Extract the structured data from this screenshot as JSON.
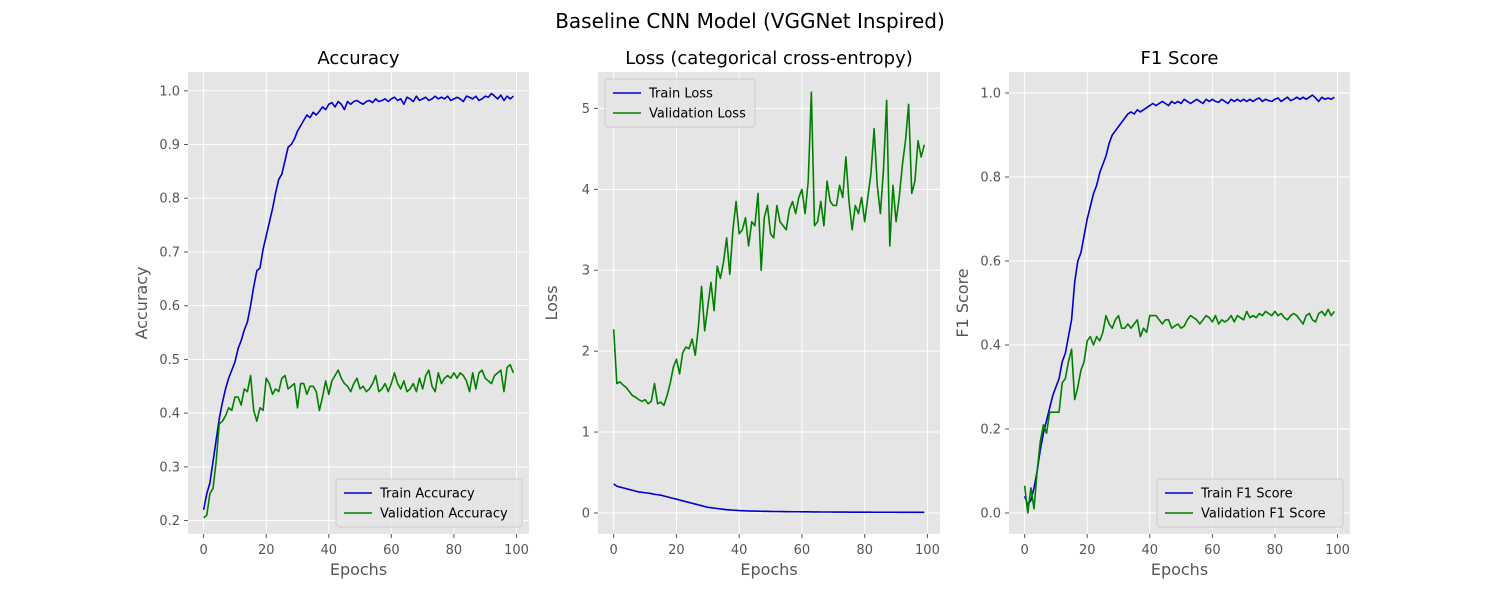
{
  "figure": {
    "title": "Baseline CNN Model (VGGNet Inspired)"
  },
  "chart_data": [
    {
      "type": "line",
      "title": "Accuracy",
      "xlabel": "Epochs",
      "ylabel": "Accuracy",
      "xlim": [
        -5,
        104
      ],
      "ylim": [
        0.175,
        1.035
      ],
      "xticks": [
        0,
        20,
        40,
        60,
        80,
        100
      ],
      "yticks": [
        0.2,
        0.3,
        0.4,
        0.5,
        0.6,
        0.7,
        0.8,
        0.9,
        1.0
      ],
      "ytick_labels": [
        "0.2",
        "0.3",
        "0.4",
        "0.5",
        "0.6",
        "0.7",
        "0.8",
        "0.9",
        "1.0"
      ],
      "grid": true,
      "legend": "lower right",
      "series": [
        {
          "name": "Train Accuracy",
          "color": "#0000cc",
          "values": [
            0.22,
            0.25,
            0.27,
            0.31,
            0.35,
            0.39,
            0.42,
            0.445,
            0.465,
            0.48,
            0.495,
            0.52,
            0.535,
            0.555,
            0.57,
            0.6,
            0.635,
            0.665,
            0.67,
            0.705,
            0.73,
            0.755,
            0.78,
            0.81,
            0.835,
            0.845,
            0.87,
            0.895,
            0.9,
            0.91,
            0.925,
            0.935,
            0.945,
            0.955,
            0.95,
            0.96,
            0.955,
            0.962,
            0.97,
            0.965,
            0.975,
            0.978,
            0.97,
            0.98,
            0.975,
            0.965,
            0.98,
            0.975,
            0.98,
            0.982,
            0.978,
            0.975,
            0.98,
            0.982,
            0.978,
            0.985,
            0.98,
            0.982,
            0.985,
            0.98,
            0.985,
            0.988,
            0.982,
            0.985,
            0.975,
            0.988,
            0.985,
            0.98,
            0.99,
            0.982,
            0.985,
            0.988,
            0.982,
            0.985,
            0.99,
            0.985,
            0.988,
            0.985,
            0.99,
            0.982,
            0.985,
            0.988,
            0.985,
            0.98,
            0.99,
            0.988,
            0.985,
            0.99,
            0.982,
            0.985,
            0.99,
            0.988,
            0.995,
            0.99,
            0.985,
            0.992,
            0.982,
            0.99,
            0.985,
            0.99
          ]
        },
        {
          "name": "Validation Accuracy",
          "color": "#008000",
          "values": [
            0.205,
            0.21,
            0.25,
            0.26,
            0.31,
            0.38,
            0.385,
            0.395,
            0.41,
            0.405,
            0.43,
            0.43,
            0.415,
            0.445,
            0.44,
            0.47,
            0.405,
            0.385,
            0.41,
            0.405,
            0.465,
            0.455,
            0.435,
            0.445,
            0.44,
            0.465,
            0.47,
            0.445,
            0.45,
            0.455,
            0.41,
            0.455,
            0.455,
            0.435,
            0.45,
            0.45,
            0.44,
            0.405,
            0.43,
            0.46,
            0.435,
            0.46,
            0.47,
            0.48,
            0.465,
            0.455,
            0.45,
            0.44,
            0.455,
            0.465,
            0.445,
            0.45,
            0.44,
            0.445,
            0.455,
            0.47,
            0.44,
            0.445,
            0.455,
            0.44,
            0.455,
            0.475,
            0.455,
            0.445,
            0.46,
            0.44,
            0.445,
            0.455,
            0.44,
            0.465,
            0.445,
            0.47,
            0.48,
            0.45,
            0.44,
            0.475,
            0.455,
            0.465,
            0.47,
            0.465,
            0.475,
            0.465,
            0.475,
            0.47,
            0.46,
            0.44,
            0.475,
            0.445,
            0.475,
            0.48,
            0.465,
            0.46,
            0.455,
            0.47,
            0.475,
            0.48,
            0.44,
            0.485,
            0.49,
            0.475
          ]
        }
      ]
    },
    {
      "type": "line",
      "title": "Loss (categorical cross-entropy)",
      "xlabel": "Epochs",
      "ylabel": "Loss",
      "xlim": [
        -5,
        104
      ],
      "ylim": [
        -0.26,
        5.45
      ],
      "xticks": [
        0,
        20,
        40,
        60,
        80,
        100
      ],
      "yticks": [
        0,
        1,
        2,
        3,
        4,
        5
      ],
      "ytick_labels": [
        "0",
        "1",
        "2",
        "3",
        "4",
        "5"
      ],
      "grid": true,
      "legend": "upper left",
      "series": [
        {
          "name": "Train Loss",
          "color": "#0000cc",
          "values": [
            0.36,
            0.33,
            0.32,
            0.31,
            0.3,
            0.29,
            0.28,
            0.27,
            0.26,
            0.255,
            0.25,
            0.245,
            0.24,
            0.23,
            0.225,
            0.22,
            0.21,
            0.2,
            0.19,
            0.18,
            0.17,
            0.16,
            0.15,
            0.14,
            0.13,
            0.12,
            0.11,
            0.1,
            0.09,
            0.08,
            0.07,
            0.065,
            0.06,
            0.055,
            0.05,
            0.045,
            0.04,
            0.038,
            0.035,
            0.033,
            0.03,
            0.028,
            0.026,
            0.025,
            0.024,
            0.023,
            0.022,
            0.021,
            0.02,
            0.02,
            0.019,
            0.018,
            0.018,
            0.017,
            0.017,
            0.016,
            0.016,
            0.015,
            0.015,
            0.015,
            0.014,
            0.014,
            0.014,
            0.013,
            0.013,
            0.013,
            0.012,
            0.012,
            0.012,
            0.012,
            0.011,
            0.011,
            0.011,
            0.011,
            0.011,
            0.01,
            0.01,
            0.01,
            0.01,
            0.01,
            0.01,
            0.01,
            0.01,
            0.009,
            0.009,
            0.009,
            0.009,
            0.009,
            0.009,
            0.009,
            0.009,
            0.008,
            0.008,
            0.008,
            0.008,
            0.008,
            0.008,
            0.008,
            0.008,
            0.008
          ]
        },
        {
          "name": "Validation Loss",
          "color": "#008000",
          "values": [
            2.27,
            1.6,
            1.62,
            1.58,
            1.55,
            1.5,
            1.45,
            1.43,
            1.4,
            1.38,
            1.4,
            1.35,
            1.38,
            1.6,
            1.35,
            1.37,
            1.33,
            1.45,
            1.6,
            1.8,
            1.9,
            1.72,
            1.98,
            2.05,
            2.03,
            2.15,
            1.95,
            2.3,
            2.8,
            2.25,
            2.55,
            2.85,
            2.5,
            3.05,
            2.9,
            3.1,
            3.4,
            2.95,
            3.5,
            3.85,
            3.45,
            3.5,
            3.65,
            3.3,
            3.6,
            3.55,
            3.95,
            3.0,
            3.65,
            3.8,
            3.45,
            3.4,
            3.8,
            3.6,
            3.55,
            3.5,
            3.75,
            3.85,
            3.7,
            3.9,
            4.0,
            3.7,
            4.1,
            5.2,
            3.55,
            3.6,
            3.85,
            3.55,
            4.1,
            3.85,
            3.8,
            3.8,
            4.05,
            3.9,
            4.4,
            3.85,
            3.5,
            3.8,
            3.7,
            3.9,
            3.6,
            3.9,
            4.2,
            4.75,
            4.05,
            3.7,
            4.25,
            5.1,
            3.3,
            4.05,
            3.6,
            3.9,
            4.3,
            4.6,
            5.05,
            3.95,
            4.1,
            4.6,
            4.4,
            4.55
          ]
        }
      ]
    },
    {
      "type": "line",
      "title": "F1 Score",
      "xlabel": "Epochs",
      "ylabel": "F1 Score",
      "xlim": [
        -5,
        104
      ],
      "ylim": [
        -0.05,
        1.05
      ],
      "xticks": [
        0,
        20,
        40,
        60,
        80,
        100
      ],
      "yticks": [
        0.0,
        0.2,
        0.4,
        0.6,
        0.8,
        1.0
      ],
      "ytick_labels": [
        "0.0",
        "0.2",
        "0.4",
        "0.6",
        "0.8",
        "1.0"
      ],
      "grid": true,
      "legend": "lower right",
      "series": [
        {
          "name": "Train F1 Score",
          "color": "#0000cc",
          "values": [
            0.04,
            0.02,
            0.03,
            0.06,
            0.1,
            0.15,
            0.19,
            0.22,
            0.25,
            0.28,
            0.3,
            0.32,
            0.36,
            0.38,
            0.42,
            0.46,
            0.55,
            0.6,
            0.62,
            0.66,
            0.7,
            0.73,
            0.76,
            0.78,
            0.81,
            0.83,
            0.85,
            0.88,
            0.9,
            0.91,
            0.92,
            0.93,
            0.94,
            0.95,
            0.955,
            0.95,
            0.96,
            0.955,
            0.96,
            0.965,
            0.97,
            0.975,
            0.97,
            0.975,
            0.98,
            0.975,
            0.97,
            0.98,
            0.975,
            0.98,
            0.975,
            0.985,
            0.98,
            0.975,
            0.98,
            0.985,
            0.98,
            0.975,
            0.985,
            0.98,
            0.985,
            0.98,
            0.978,
            0.985,
            0.98,
            0.975,
            0.985,
            0.98,
            0.985,
            0.98,
            0.985,
            0.98,
            0.985,
            0.98,
            0.985,
            0.988,
            0.98,
            0.985,
            0.982,
            0.98,
            0.985,
            0.988,
            0.98,
            0.985,
            0.99,
            0.982,
            0.985,
            0.99,
            0.985,
            0.99,
            0.985,
            0.99,
            0.995,
            0.988,
            0.98,
            0.99,
            0.985,
            0.988,
            0.985,
            0.99
          ]
        },
        {
          "name": "Validation F1 Score",
          "color": "#008000",
          "values": [
            0.065,
            0.0,
            0.06,
            0.01,
            0.1,
            0.17,
            0.21,
            0.19,
            0.24,
            0.24,
            0.24,
            0.24,
            0.31,
            0.32,
            0.36,
            0.39,
            0.27,
            0.3,
            0.34,
            0.36,
            0.41,
            0.42,
            0.4,
            0.42,
            0.41,
            0.43,
            0.47,
            0.45,
            0.44,
            0.46,
            0.47,
            0.44,
            0.44,
            0.45,
            0.44,
            0.45,
            0.46,
            0.42,
            0.44,
            0.43,
            0.47,
            0.47,
            0.47,
            0.46,
            0.45,
            0.46,
            0.46,
            0.44,
            0.445,
            0.45,
            0.44,
            0.445,
            0.46,
            0.47,
            0.465,
            0.46,
            0.45,
            0.46,
            0.47,
            0.465,
            0.455,
            0.47,
            0.45,
            0.46,
            0.455,
            0.46,
            0.47,
            0.455,
            0.47,
            0.465,
            0.46,
            0.48,
            0.465,
            0.47,
            0.465,
            0.475,
            0.47,
            0.48,
            0.475,
            0.47,
            0.48,
            0.47,
            0.475,
            0.465,
            0.46,
            0.47,
            0.475,
            0.47,
            0.46,
            0.45,
            0.47,
            0.475,
            0.46,
            0.455,
            0.475,
            0.48,
            0.47,
            0.485,
            0.47,
            0.48
          ]
        }
      ]
    }
  ]
}
